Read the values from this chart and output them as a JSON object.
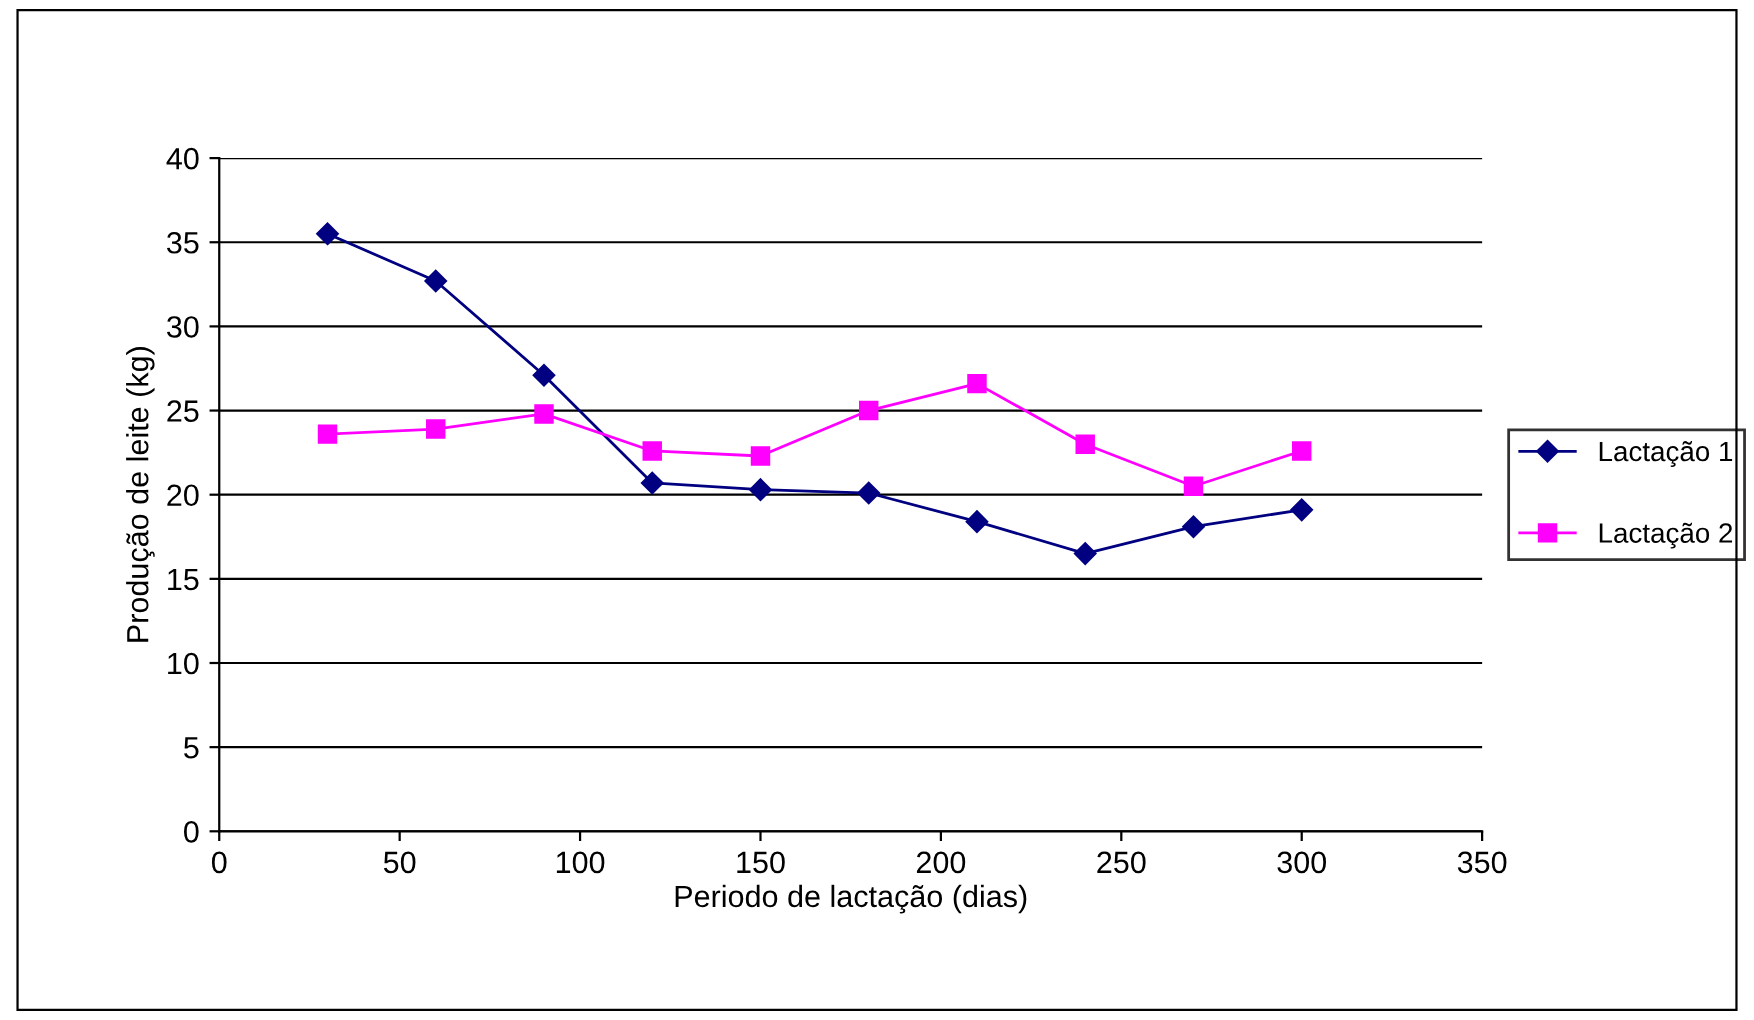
{
  "chart_data": {
    "type": "line",
    "xlabel": "Periodo de lactação (dias)",
    "ylabel": "Produção de leite (kg)",
    "x": [
      30,
      60,
      90,
      120,
      150,
      180,
      210,
      240,
      270,
      300
    ],
    "series": [
      {
        "name": "Lactação 1",
        "color": "#000080",
        "marker": "diamond",
        "values": [
          35.5,
          32.7,
          27.1,
          20.7,
          20.3,
          20.1,
          18.4,
          16.5,
          18.1,
          19.1
        ]
      },
      {
        "name": "Lactação 2",
        "color": "#ff00ff",
        "marker": "square",
        "values": [
          23.6,
          23.9,
          24.8,
          22.6,
          22.3,
          25.0,
          26.6,
          23.0,
          20.5,
          22.6
        ]
      }
    ],
    "xlim": [
      0,
      350
    ],
    "xticks": [
      0,
      50,
      100,
      150,
      200,
      250,
      300,
      350
    ],
    "ylim": [
      0,
      40
    ],
    "yticks": [
      0,
      5,
      10,
      15,
      20,
      25,
      30,
      35,
      40
    ],
    "grid": "y",
    "legend": "right"
  }
}
